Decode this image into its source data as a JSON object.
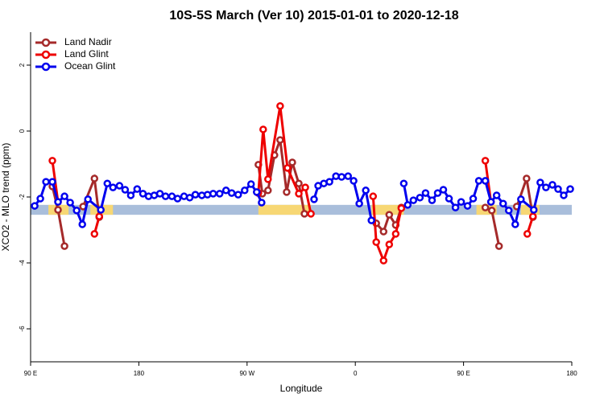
{
  "chart_data": {
    "type": "line",
    "title": "10S-5S March (Ver 10)   2015-01-01 to 2020-12-18",
    "x_label": "Longitude",
    "y_label": "XCO2 - MLO trend (ppm)",
    "xlim": [
      90,
      540
    ],
    "ylim": [
      -7,
      3
    ],
    "xticks": [
      {
        "value": 90,
        "label": "90 E"
      },
      {
        "value": 180,
        "label": "180"
      },
      {
        "value": 270,
        "label": "90 W"
      },
      {
        "value": 360,
        "label": "0"
      },
      {
        "value": 450,
        "label": "90 E"
      },
      {
        "value": 540,
        "label": "180"
      }
    ],
    "yticks": [
      -6,
      -4,
      -2,
      0,
      2
    ],
    "legend": "top-left",
    "band": {
      "y": [
        -2.54,
        -2.24
      ],
      "color": "#a9bedb",
      "land_color": "#f7d774",
      "land": [
        [
          104.8,
          121.6
        ],
        [
          139.7,
          158.5
        ],
        [
          279.4,
          323.1
        ],
        [
          373.4,
          400.3
        ],
        [
          460.7,
          477.5
        ],
        [
          497.7,
          513.1
        ]
      ]
    },
    "series": [
      {
        "name": "Land Nadir",
        "color": "#a52a2a",
        "x": [
          108.1,
          112.8,
          118.2,
          null,
          133.7,
          143.1,
          147.1,
          null,
          279.4,
          282.7,
          287.4,
          292.8,
          297.5,
          302.9,
          307.6,
          313.0,
          317.7,
          null,
          377.4,
          383.5,
          388.2,
          393.6,
          398.3,
          null,
          468.1,
          473.5,
          479.5,
          null,
          494.3,
          502.4,
          507.7
        ],
        "values": [
          -1.68,
          -2.39,
          -3.49,
          null,
          -2.29,
          -1.44,
          -2.61,
          null,
          -1.02,
          -1.9,
          -1.8,
          -0.73,
          -0.27,
          -1.85,
          -0.95,
          -1.59,
          -2.51,
          null,
          -2.8,
          -3.05,
          -2.54,
          -2.85,
          -2.32,
          null,
          -2.32,
          -2.41,
          -3.49,
          null,
          -2.29,
          -1.44,
          -2.61
        ]
      },
      {
        "name": "Land Glint",
        "color": "#ee0000",
        "x": [
          108.1,
          112.8,
          null,
          143.1,
          147.1,
          null,
          279.4,
          283.4,
          287.4,
          297.5,
          303.6,
          313.0,
          318.4,
          323.1,
          null,
          374.8,
          377.4,
          383.5,
          388.2,
          393.6,
          398.3,
          null,
          468.1,
          472.8,
          null,
          503.0,
          507.7
        ],
        "values": [
          -0.9,
          -2.15,
          null,
          -3.12,
          -2.59,
          null,
          -1.88,
          0.05,
          -1.46,
          0.76,
          -1.12,
          -1.9,
          -1.71,
          -2.51,
          null,
          -1.98,
          -3.37,
          -3.93,
          -3.44,
          -3.12,
          -2.34,
          null,
          -0.9,
          -2.15,
          null,
          -3.12,
          -2.59
        ]
      },
      {
        "name": "Ocean Glint",
        "color": "#0000ee",
        "x": [
          93.4,
          98.1,
          102.8,
          108.1,
          112.8,
          118.2,
          122.9,
          128.3,
          133.0,
          137.7,
          148.4,
          153.8,
          158.5,
          163.9,
          168.6,
          173.3,
          178.6,
          183.4,
          188.1,
          192.8,
          197.5,
          202.2,
          207.5,
          212.2,
          217.6,
          222.3,
          227.0,
          232.4,
          237.1,
          241.8,
          247.2,
          252.5,
          257.2,
          262.6,
          268.0,
          273.3,
          278.0,
          282.1,
          null,
          325.7,
          329.1,
          333.8,
          338.5,
          343.9,
          348.6,
          354.0,
          358.6,
          363.3,
          368.7,
          373.4,
          null,
          400.3,
          403.6,
          408.3,
          413.7,
          418.4,
          423.8,
          428.5,
          433.2,
          437.9,
          443.3,
          448.0,
          453.3,
          458.0,
          462.7,
          468.1,
          472.8,
          477.5,
          482.9,
          487.6,
          493.0,
          497.7,
          508.4,
          513.8,
          518.5,
          523.9,
          528.6,
          533.3,
          538.7
        ],
        "values": [
          -2.27,
          -2.05,
          -1.54,
          -1.54,
          -2.15,
          -1.98,
          -2.17,
          -2.41,
          -2.83,
          -2.07,
          -2.39,
          -1.59,
          -1.71,
          -1.66,
          -1.78,
          -1.95,
          -1.76,
          -1.9,
          -1.98,
          -1.95,
          -1.9,
          -1.98,
          -1.98,
          -2.05,
          -1.98,
          -2.02,
          -1.93,
          -1.95,
          -1.93,
          -1.9,
          -1.9,
          -1.8,
          -1.88,
          -1.93,
          -1.8,
          -1.61,
          -1.85,
          -2.17,
          null,
          -2.07,
          -1.66,
          -1.59,
          -1.54,
          -1.37,
          -1.39,
          -1.37,
          -1.51,
          -2.2,
          -1.8,
          -2.71,
          null,
          -1.59,
          -2.24,
          -2.1,
          -2.02,
          -1.88,
          -2.1,
          -1.88,
          -1.78,
          -2.05,
          -2.32,
          -2.15,
          -2.27,
          -2.05,
          -1.51,
          -1.51,
          -2.15,
          -1.95,
          -2.2,
          -2.41,
          -2.83,
          -2.07,
          -2.39,
          -1.56,
          -1.71,
          -1.63,
          -1.76,
          -1.95,
          -1.76
        ]
      }
    ]
  }
}
